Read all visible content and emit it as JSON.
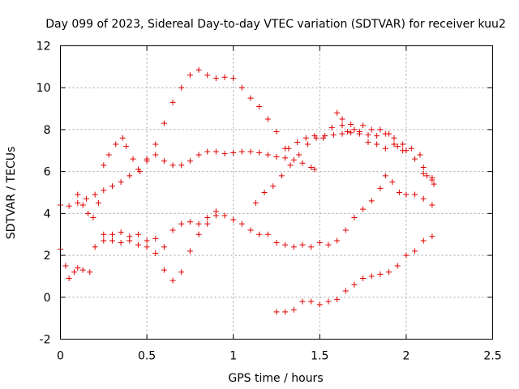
{
  "chart_data": {
    "type": "scatter",
    "title": "Day 099 of 2023, Sidereal Day-to-day VTEC variation (SDTVAR) for receiver kuu2",
    "xlabel": "GPS time / hours",
    "ylabel": "SDTVAR / TECUs",
    "xlim": [
      0,
      2.5
    ],
    "ylim": [
      -2,
      12
    ],
    "xticks": [
      0,
      0.5,
      1,
      1.5,
      2,
      2.5
    ],
    "xtick_labels": [
      "0",
      "0.5",
      "1",
      "1.5",
      "2",
      "2.5"
    ],
    "yticks": [
      -2,
      0,
      2,
      4,
      6,
      8,
      10,
      12
    ],
    "ytick_labels": [
      "-2",
      "0",
      "2",
      "4",
      "6",
      "8",
      "10",
      "12"
    ],
    "grid": true,
    "marker": "+",
    "color": "#e00000",
    "series": [
      {
        "name": "s1",
        "points": [
          [
            0.0,
            4.4
          ],
          [
            0.05,
            4.35
          ],
          [
            0.1,
            4.5
          ],
          [
            0.15,
            4.7
          ],
          [
            0.2,
            4.9
          ],
          [
            0.25,
            5.1
          ],
          [
            0.3,
            5.3
          ],
          [
            0.35,
            5.5
          ],
          [
            0.4,
            5.8
          ],
          [
            0.45,
            6.1
          ],
          [
            0.5,
            6.5
          ],
          [
            0.55,
            6.8
          ],
          [
            0.6,
            6.5
          ],
          [
            0.65,
            6.3
          ],
          [
            0.7,
            6.3
          ],
          [
            0.75,
            6.5
          ],
          [
            0.8,
            6.8
          ],
          [
            0.85,
            6.95
          ],
          [
            0.9,
            6.95
          ],
          [
            0.95,
            6.85
          ],
          [
            1.0,
            6.9
          ],
          [
            1.05,
            6.95
          ],
          [
            1.1,
            6.95
          ],
          [
            1.15,
            6.9
          ],
          [
            1.2,
            6.8
          ],
          [
            1.25,
            6.7
          ],
          [
            1.3,
            6.65
          ],
          [
            1.35,
            6.55
          ],
          [
            1.4,
            6.4
          ],
          [
            1.45,
            6.2
          ],
          [
            1.47,
            6.1
          ]
        ]
      },
      {
        "name": "s2",
        "points": [
          [
            0.1,
            4.9
          ],
          [
            0.13,
            4.4
          ],
          [
            0.16,
            4.0
          ],
          [
            0.19,
            3.8
          ],
          [
            0.22,
            4.5
          ],
          [
            0.25,
            6.3
          ],
          [
            0.28,
            6.8
          ],
          [
            0.32,
            7.3
          ],
          [
            0.36,
            7.6
          ],
          [
            0.38,
            7.2
          ],
          [
            0.42,
            6.6
          ],
          [
            0.46,
            6.0
          ]
        ]
      },
      {
        "name": "s3",
        "points": [
          [
            0.5,
            6.6
          ],
          [
            0.55,
            7.3
          ],
          [
            0.6,
            8.3
          ],
          [
            0.65,
            9.3
          ],
          [
            0.7,
            10.0
          ],
          [
            0.75,
            10.6
          ],
          [
            0.8,
            10.85
          ],
          [
            0.85,
            10.6
          ],
          [
            0.9,
            10.45
          ],
          [
            0.95,
            10.5
          ],
          [
            1.0,
            10.45
          ],
          [
            1.05,
            10.0
          ],
          [
            1.1,
            9.5
          ],
          [
            1.15,
            9.1
          ],
          [
            1.2,
            8.5
          ],
          [
            1.25,
            7.9
          ],
          [
            1.3,
            7.1
          ]
        ]
      },
      {
        "name": "s4",
        "points": [
          [
            1.13,
            4.5
          ],
          [
            1.18,
            5.0
          ],
          [
            1.23,
            5.3
          ],
          [
            1.28,
            5.8
          ],
          [
            1.33,
            6.3
          ],
          [
            1.38,
            6.8
          ],
          [
            1.43,
            7.3
          ],
          [
            1.48,
            7.6
          ],
          [
            1.53,
            7.7
          ],
          [
            1.58,
            7.75
          ],
          [
            1.63,
            7.8
          ],
          [
            1.68,
            7.85
          ],
          [
            1.73,
            7.9
          ],
          [
            1.78,
            7.75
          ],
          [
            1.83,
            7.7
          ],
          [
            1.88,
            7.8
          ],
          [
            1.93,
            7.6
          ],
          [
            1.98,
            7.3
          ],
          [
            2.03,
            7.1
          ],
          [
            2.08,
            6.8
          ],
          [
            2.1,
            6.2
          ],
          [
            2.12,
            5.8
          ],
          [
            2.15,
            5.6
          ],
          [
            2.16,
            5.4
          ]
        ]
      },
      {
        "name": "s5",
        "points": [
          [
            1.32,
            7.1
          ],
          [
            1.37,
            7.4
          ],
          [
            1.42,
            7.6
          ],
          [
            1.47,
            7.7
          ],
          [
            1.52,
            7.6
          ],
          [
            1.57,
            8.1
          ],
          [
            1.6,
            8.8
          ],
          [
            1.63,
            8.5
          ],
          [
            1.66,
            7.9
          ],
          [
            1.7,
            8.0
          ],
          [
            1.75,
            8.2
          ],
          [
            1.8,
            8.0
          ],
          [
            1.85,
            8.0
          ],
          [
            1.9,
            7.8
          ],
          [
            1.95,
            7.2
          ],
          [
            2.0,
            7.0
          ],
          [
            2.05,
            6.6
          ],
          [
            2.1,
            5.9
          ],
          [
            2.15,
            5.7
          ]
        ]
      },
      {
        "name": "s6",
        "points": [
          [
            1.63,
            8.2
          ],
          [
            1.68,
            8.25
          ],
          [
            1.73,
            7.8
          ],
          [
            1.78,
            7.4
          ],
          [
            1.83,
            7.3
          ],
          [
            1.88,
            7.1
          ],
          [
            1.93,
            7.3
          ],
          [
            1.98,
            7.0
          ]
        ]
      },
      {
        "name": "s7",
        "points": [
          [
            0.0,
            2.3
          ],
          [
            0.03,
            1.5
          ],
          [
            0.05,
            0.9
          ],
          [
            0.08,
            1.2
          ],
          [
            0.1,
            1.4
          ],
          [
            0.13,
            1.3
          ],
          [
            0.17,
            1.2
          ],
          [
            0.2,
            2.4
          ],
          [
            0.25,
            2.7
          ],
          [
            0.3,
            2.7
          ],
          [
            0.35,
            2.6
          ],
          [
            0.4,
            2.7
          ],
          [
            0.45,
            2.5
          ],
          [
            0.5,
            2.4
          ],
          [
            0.55,
            2.8
          ],
          [
            0.6,
            2.4
          ],
          [
            0.65,
            3.2
          ],
          [
            0.7,
            3.5
          ],
          [
            0.75,
            3.6
          ],
          [
            0.8,
            3.5
          ],
          [
            0.85,
            3.8
          ],
          [
            0.9,
            4.1
          ],
          [
            0.95,
            3.9
          ],
          [
            1.0,
            3.7
          ],
          [
            1.05,
            3.5
          ],
          [
            1.1,
            3.2
          ],
          [
            1.15,
            3.0
          ],
          [
            1.2,
            3.0
          ],
          [
            1.25,
            2.6
          ],
          [
            1.3,
            2.5
          ],
          [
            1.35,
            2.4
          ],
          [
            1.4,
            2.5
          ],
          [
            1.45,
            2.4
          ],
          [
            1.5,
            2.6
          ],
          [
            1.55,
            2.5
          ],
          [
            1.6,
            2.7
          ],
          [
            1.65,
            3.2
          ],
          [
            1.7,
            3.8
          ],
          [
            1.75,
            4.2
          ],
          [
            1.8,
            4.6
          ],
          [
            1.85,
            5.2
          ],
          [
            1.88,
            5.8
          ],
          [
            1.92,
            5.5
          ],
          [
            1.96,
            5.0
          ],
          [
            2.0,
            4.9
          ],
          [
            2.05,
            4.9
          ],
          [
            2.1,
            4.7
          ],
          [
            2.15,
            4.4
          ]
        ]
      },
      {
        "name": "s8",
        "points": [
          [
            0.25,
            3.0
          ],
          [
            0.3,
            3.0
          ],
          [
            0.35,
            3.1
          ],
          [
            0.4,
            2.9
          ],
          [
            0.45,
            3.0
          ],
          [
            0.5,
            2.7
          ],
          [
            0.55,
            2.1
          ],
          [
            0.6,
            1.3
          ],
          [
            0.65,
            0.8
          ],
          [
            0.7,
            1.2
          ],
          [
            0.75,
            2.2
          ],
          [
            0.8,
            3.0
          ],
          [
            0.85,
            3.5
          ],
          [
            0.9,
            3.9
          ]
        ]
      },
      {
        "name": "s9",
        "points": [
          [
            1.25,
            -0.7
          ],
          [
            1.3,
            -0.7
          ],
          [
            1.35,
            -0.6
          ],
          [
            1.4,
            -0.2
          ],
          [
            1.45,
            -0.2
          ],
          [
            1.5,
            -0.35
          ],
          [
            1.55,
            -0.2
          ],
          [
            1.6,
            -0.1
          ],
          [
            1.65,
            0.3
          ],
          [
            1.7,
            0.6
          ],
          [
            1.75,
            0.9
          ],
          [
            1.8,
            1.0
          ],
          [
            1.85,
            1.1
          ],
          [
            1.9,
            1.2
          ],
          [
            1.95,
            1.5
          ],
          [
            2.0,
            2.0
          ],
          [
            2.05,
            2.2
          ],
          [
            2.1,
            2.7
          ],
          [
            2.15,
            2.9
          ]
        ]
      }
    ]
  }
}
